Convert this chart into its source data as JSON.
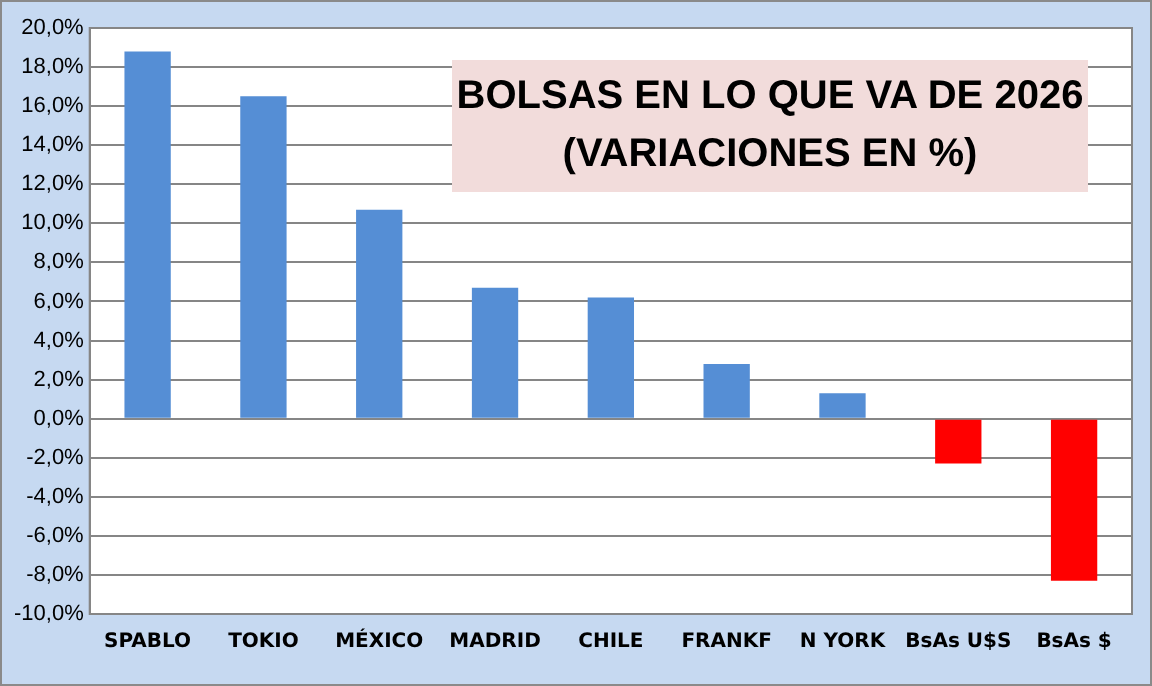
{
  "chart_data": {
    "type": "bar",
    "title": "BOLSAS EN LO QUE VA DE 2026\n(VARIACIONES EN %)",
    "categories": [
      "SPABLO",
      "TOKIO",
      "MÉXICO",
      "MADRID",
      "CHILE",
      "FRANKF",
      "N YORK",
      "BsAs U$S",
      "BsAs $"
    ],
    "values": [
      18.8,
      16.5,
      10.7,
      6.7,
      6.2,
      2.8,
      1.3,
      -2.3,
      -8.3
    ],
    "colors": [
      "#558ed5",
      "#558ed5",
      "#558ed5",
      "#558ed5",
      "#558ed5",
      "#558ed5",
      "#558ed5",
      "#ff0000",
      "#ff0000"
    ],
    "ylim": [
      -10,
      20
    ],
    "yticks": [
      {
        "value": -10,
        "label": "-10,0%"
      },
      {
        "value": -8,
        "label": "-8,0%"
      },
      {
        "value": -6,
        "label": "-6,0%"
      },
      {
        "value": -4,
        "label": "-4,0%"
      },
      {
        "value": -2,
        "label": "-2,0%"
      },
      {
        "value": 0,
        "label": "0,0%"
      },
      {
        "value": 2,
        "label": "2,0%"
      },
      {
        "value": 4,
        "label": "4,0%"
      },
      {
        "value": 6,
        "label": "6,0%"
      },
      {
        "value": 8,
        "label": "8,0%"
      },
      {
        "value": 10,
        "label": "10,0%"
      },
      {
        "value": 12,
        "label": "12,0%"
      },
      {
        "value": 14,
        "label": "14,0%"
      },
      {
        "value": 16,
        "label": "16,0%"
      },
      {
        "value": 18,
        "label": "18,0%"
      },
      {
        "value": 20,
        "label": "20,0%"
      }
    ],
    "grid": "y",
    "legend": false
  }
}
